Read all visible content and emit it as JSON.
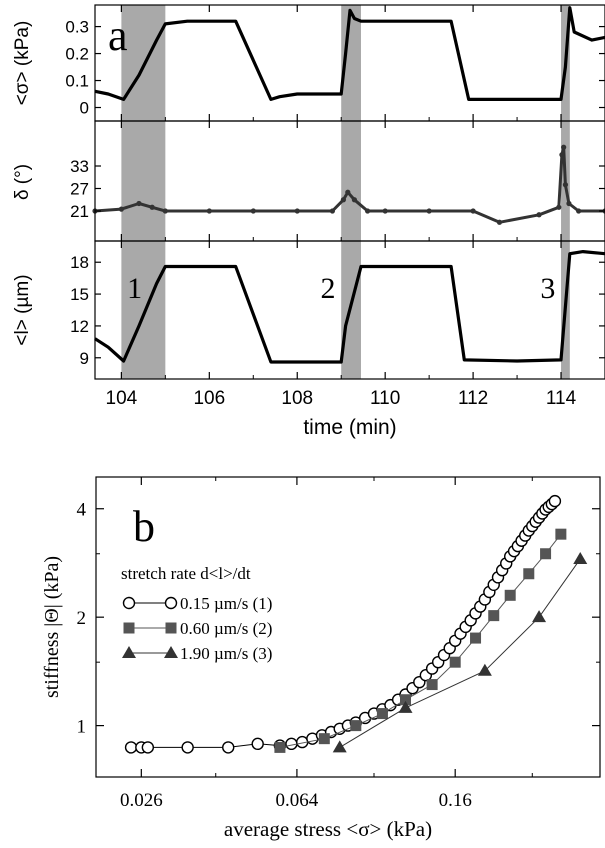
{
  "chart_data": [
    {
      "type": "line",
      "panel_label": "a",
      "xlabel": "time (min)",
      "xlim": [
        103.4,
        115
      ],
      "xticks": [
        "104",
        "106",
        "108",
        "110",
        "112",
        "114"
      ],
      "shaded_intervals": [
        [
          104.0,
          105.0
        ],
        [
          109.0,
          109.45
        ],
        [
          114.0,
          114.2
        ]
      ],
      "interval_labels": [
        {
          "text": "1",
          "x": 104.3
        },
        {
          "text": "2",
          "x": 108.7
        },
        {
          "text": "3",
          "x": 113.7
        }
      ],
      "subplots": [
        {
          "ylabel": "<σ> (kPa)",
          "ylim": [
            -0.05,
            0.38
          ],
          "yticks": [
            "0",
            "0.1",
            "0.2",
            "0.3"
          ],
          "x": [
            103.4,
            103.7,
            104.05,
            104.4,
            104.8,
            105.0,
            105.5,
            106.0,
            106.6,
            107.4,
            107.6,
            108.0,
            109.0,
            109.1,
            109.2,
            109.3,
            109.45,
            110.5,
            111.5,
            111.9,
            113.0,
            114.0,
            114.1,
            114.2,
            114.3,
            114.7,
            115.0
          ],
          "values": [
            0.06,
            0.05,
            0.03,
            0.12,
            0.25,
            0.31,
            0.32,
            0.32,
            0.32,
            0.03,
            0.04,
            0.05,
            0.05,
            0.2,
            0.36,
            0.33,
            0.32,
            0.32,
            0.32,
            0.03,
            0.03,
            0.03,
            0.15,
            0.37,
            0.28,
            0.25,
            0.26
          ]
        },
        {
          "ylabel": "δ (°)",
          "ylim": [
            13,
            45
          ],
          "yticks": [
            "21",
            "27",
            "33"
          ],
          "x": [
            103.4,
            104.0,
            104.4,
            104.7,
            105.0,
            106.0,
            107.0,
            108.0,
            108.8,
            109.05,
            109.15,
            109.3,
            109.6,
            110.0,
            111.0,
            112.0,
            112.6,
            113.5,
            113.95,
            114.02,
            114.06,
            114.1,
            114.18,
            114.4,
            115.0
          ],
          "values": [
            21,
            21.5,
            23,
            22,
            21,
            21,
            21,
            21,
            21,
            24,
            26,
            24,
            21,
            21,
            21,
            21,
            18,
            20,
            22,
            36,
            38,
            28,
            23,
            21,
            21
          ]
        },
        {
          "ylabel": "<l> (µm)",
          "ylim": [
            7,
            20
          ],
          "yticks": [
            "9",
            "12",
            "15",
            "18"
          ],
          "x": [
            103.4,
            103.7,
            104.05,
            104.4,
            104.8,
            105.0,
            106.6,
            107.4,
            108.0,
            109.0,
            109.1,
            109.45,
            111.5,
            111.8,
            113.0,
            114.0,
            114.2,
            114.5,
            115.0
          ],
          "values": [
            10.8,
            10,
            8.7,
            12,
            16,
            17.6,
            17.6,
            8.6,
            8.6,
            8.6,
            12,
            17.6,
            17.6,
            8.8,
            8.7,
            8.8,
            18.8,
            19,
            18.8
          ]
        }
      ]
    },
    {
      "type": "line",
      "panel_label": "b",
      "xlabel": "average stress <σ>  (kPa)",
      "ylabel": "stiffness |Θ|  (kPa)",
      "x_scale": "log",
      "y_scale": "log",
      "xlim": [
        0.02,
        0.37
      ],
      "ylim": [
        0.72,
        4.9
      ],
      "xticks": [
        "0.026",
        "0.064",
        "0.16"
      ],
      "xtick_values": [
        0.026,
        0.064,
        0.16
      ],
      "yticks": [
        "1",
        "2",
        "4"
      ],
      "ytick_values": [
        1,
        2,
        4
      ],
      "legend_title": "stretch rate d<l>/dt",
      "legend_position": "upper-left",
      "series": [
        {
          "name": "0.15 µm/s (1)",
          "marker": "open-circle",
          "x": [
            0.0245,
            0.026,
            0.027,
            0.034,
            0.043,
            0.051,
            0.058,
            0.062,
            0.066,
            0.07,
            0.074,
            0.078,
            0.082,
            0.086,
            0.09,
            0.095,
            0.1,
            0.105,
            0.11,
            0.115,
            0.12,
            0.125,
            0.13,
            0.135,
            0.14,
            0.145,
            0.15,
            0.155,
            0.16,
            0.165,
            0.17,
            0.175,
            0.18,
            0.185,
            0.19,
            0.195,
            0.2,
            0.205,
            0.21,
            0.215,
            0.22,
            0.225,
            0.23,
            0.235,
            0.24,
            0.245,
            0.25,
            0.255,
            0.26,
            0.265,
            0.27,
            0.275,
            0.28,
            0.285
          ],
          "values": [
            0.87,
            0.87,
            0.87,
            0.87,
            0.87,
            0.89,
            0.88,
            0.89,
            0.9,
            0.92,
            0.94,
            0.96,
            0.98,
            1.0,
            1.02,
            1.05,
            1.08,
            1.11,
            1.14,
            1.18,
            1.22,
            1.27,
            1.32,
            1.38,
            1.44,
            1.5,
            1.57,
            1.64,
            1.72,
            1.8,
            1.88,
            1.96,
            2.05,
            2.14,
            2.24,
            2.35,
            2.46,
            2.58,
            2.7,
            2.82,
            2.95,
            3.05,
            3.15,
            3.26,
            3.37,
            3.48,
            3.58,
            3.68,
            3.78,
            3.88,
            3.98,
            4.05,
            4.12,
            4.2
          ]
        },
        {
          "name": "0.60 µm/s (2)",
          "marker": "filled-square",
          "x": [
            0.058,
            0.075,
            0.09,
            0.105,
            0.12,
            0.14,
            0.16,
            0.18,
            0.2,
            0.22,
            0.245,
            0.27,
            0.295
          ],
          "values": [
            0.87,
            0.92,
            1.0,
            1.08,
            1.18,
            1.3,
            1.5,
            1.75,
            2.02,
            2.3,
            2.64,
            3.0,
            3.4
          ]
        },
        {
          "name": "1.90 µm/s (3)",
          "marker": "filled-triangle",
          "x": [
            0.082,
            0.12,
            0.19,
            0.26,
            0.33
          ],
          "values": [
            0.87,
            1.12,
            1.42,
            2.0,
            2.9
          ]
        }
      ]
    }
  ]
}
